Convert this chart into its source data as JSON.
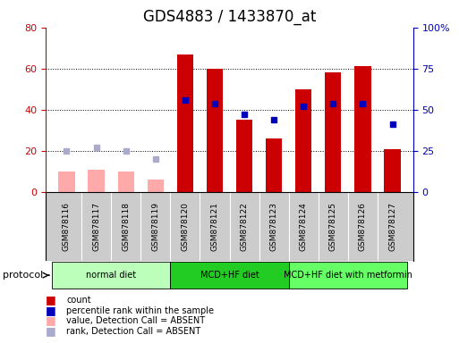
{
  "title": "GDS4883 / 1433870_at",
  "samples": [
    "GSM878116",
    "GSM878117",
    "GSM878118",
    "GSM878119",
    "GSM878120",
    "GSM878121",
    "GSM878122",
    "GSM878123",
    "GSM878124",
    "GSM878125",
    "GSM878126",
    "GSM878127"
  ],
  "red_bars": [
    null,
    null,
    null,
    null,
    67,
    60,
    35,
    26,
    50,
    58,
    61,
    21
  ],
  "blue_dots": [
    null,
    null,
    null,
    null,
    56,
    54,
    47,
    44,
    52,
    54,
    54,
    41
  ],
  "pink_bars": [
    10,
    11,
    10,
    6,
    null,
    null,
    null,
    null,
    null,
    null,
    null,
    null
  ],
  "lavender_dots": [
    25,
    27,
    25,
    20,
    null,
    null,
    null,
    null,
    null,
    null,
    null,
    null
  ],
  "ylim_left": [
    0,
    80
  ],
  "ylim_right": [
    0,
    100
  ],
  "yticks_left": [
    0,
    20,
    40,
    60,
    80
  ],
  "ytick_labels_left": [
    "0",
    "20",
    "40",
    "60",
    "80"
  ],
  "ytick_labels_right": [
    "0",
    "25",
    "50",
    "75",
    "100%"
  ],
  "groups": [
    {
      "label": "normal diet",
      "start": 0,
      "end": 3,
      "color": "#bbffbb"
    },
    {
      "label": "MCD+HF diet",
      "start": 4,
      "end": 7,
      "color": "#33dd33"
    },
    {
      "label": "MCD+HF diet with metformin",
      "start": 8,
      "end": 11,
      "color": "#66ff66"
    }
  ],
  "protocol_label": "protocol",
  "red_bar_color": "#cc0000",
  "pink_bar_color": "#ffaaaa",
  "blue_dot_color": "#0000bb",
  "lavender_dot_color": "#aaaacc",
  "title_fontsize": 12,
  "axis_color_left": "#cc0000",
  "axis_color_right": "#0000bb",
  "bar_width": 0.55,
  "plot_bg": "#ffffff",
  "label_area_bg": "#cccccc",
  "fig_bg": "#ffffff"
}
